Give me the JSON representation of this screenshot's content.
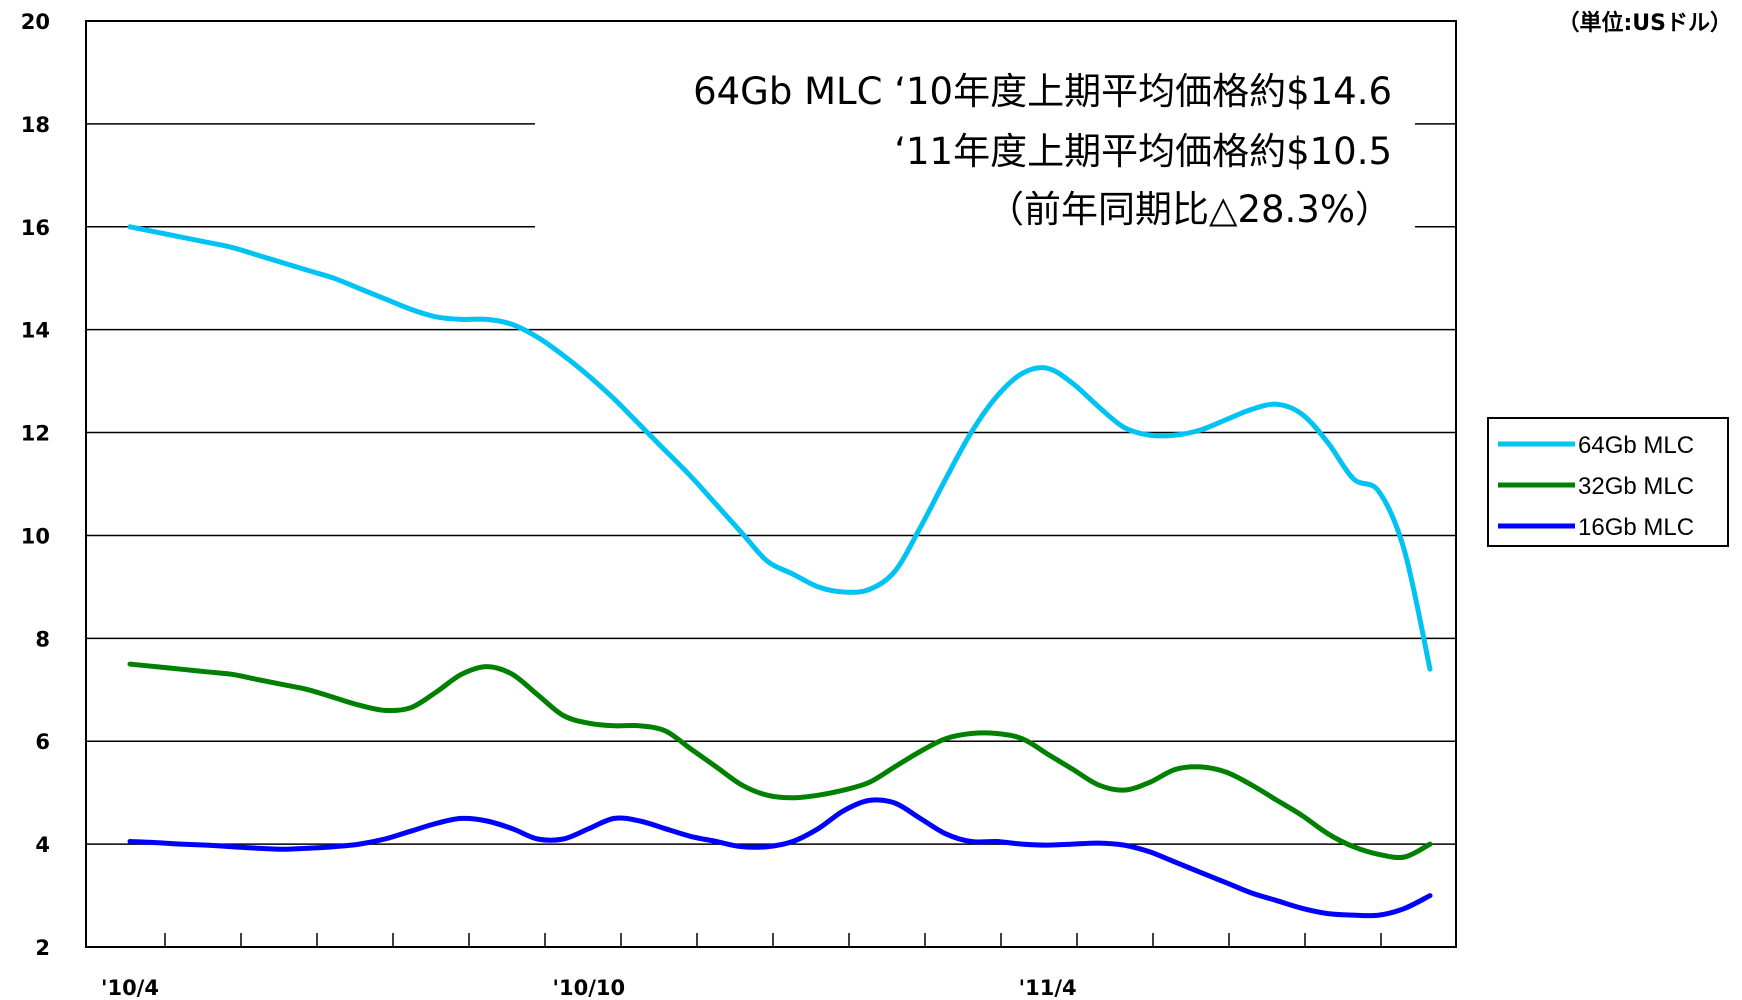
{
  "chart_data": {
    "type": "line",
    "unit_label": "（単位:USドル）",
    "ylim": [
      2,
      20
    ],
    "yticks": [
      "2",
      "4",
      "6",
      "8",
      "10",
      "12",
      "14",
      "16",
      "18",
      "20"
    ],
    "x_count": 52,
    "x_labels": [
      {
        "index": 0,
        "label": "'10/4"
      },
      {
        "index": 18,
        "label": "'10/10"
      },
      {
        "index": 36,
        "label": "'11/4"
      }
    ],
    "grid": true,
    "legend_position": "right",
    "annotation": [
      "64Gb MLC ‘10年度上期平均価格約$14.6",
      "‘11年度上期平均価格約$10.5",
      "（前年同期比△28.3%）"
    ],
    "series": [
      {
        "name": "64Gb MLC",
        "color": "#00c3f3",
        "values": [
          16.0,
          15.9,
          15.8,
          15.7,
          15.6,
          15.45,
          15.3,
          15.15,
          15.0,
          14.8,
          14.6,
          14.4,
          14.25,
          14.2,
          14.2,
          14.1,
          13.85,
          13.5,
          13.1,
          12.65,
          12.15,
          11.65,
          11.15,
          10.6,
          10.05,
          9.5,
          9.25,
          9.0,
          8.9,
          8.95,
          9.3,
          10.15,
          11.1,
          12.0,
          12.7,
          13.15,
          13.25,
          12.95,
          12.5,
          12.1,
          11.95,
          11.95,
          12.05,
          12.25,
          12.45,
          12.55,
          12.35,
          11.8,
          11.1,
          10.85,
          9.7,
          7.4
        ]
      },
      {
        "name": "32Gb MLC",
        "color": "#008000",
        "values": [
          7.5,
          7.45,
          7.4,
          7.35,
          7.3,
          7.2,
          7.1,
          7.0,
          6.85,
          6.7,
          6.6,
          6.65,
          6.95,
          7.3,
          7.45,
          7.3,
          6.9,
          6.5,
          6.35,
          6.3,
          6.3,
          6.2,
          5.85,
          5.5,
          5.15,
          4.95,
          4.9,
          4.95,
          5.05,
          5.2,
          5.5,
          5.8,
          6.05,
          6.15,
          6.15,
          6.05,
          5.75,
          5.45,
          5.15,
          5.05,
          5.2,
          5.45,
          5.5,
          5.4,
          5.15,
          4.85,
          4.55,
          4.2,
          3.95,
          3.8,
          3.75,
          4.0
        ]
      },
      {
        "name": "16Gb MLC",
        "color": "#0000ff",
        "values": [
          4.05,
          4.03,
          4.0,
          3.98,
          3.95,
          3.92,
          3.9,
          3.92,
          3.95,
          4.0,
          4.1,
          4.25,
          4.4,
          4.5,
          4.45,
          4.3,
          4.1,
          4.1,
          4.3,
          4.5,
          4.45,
          4.3,
          4.15,
          4.05,
          3.95,
          3.95,
          4.05,
          4.3,
          4.65,
          4.85,
          4.8,
          4.5,
          4.2,
          4.05,
          4.05,
          4.0,
          3.98,
          4.0,
          4.02,
          3.98,
          3.85,
          3.65,
          3.45,
          3.25,
          3.05,
          2.9,
          2.75,
          2.65,
          2.62,
          2.62,
          2.75,
          3.0
        ]
      }
    ]
  }
}
